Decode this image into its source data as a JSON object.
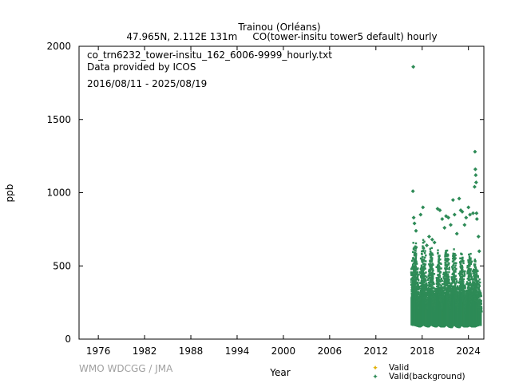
{
  "header": {
    "station": "Trainou (Orléans)",
    "subtitle": "47.965N, 2.112E 131m     CO(tower-insitu tower5 default) hourly"
  },
  "info": {
    "filename": "co_trn6232_tower-insitu_162_6006-9999_hourly.txt",
    "provider": "Data provided by ICOS",
    "period": "2016/08/11 - 2025/08/19"
  },
  "watermark": "WMO WDCGG / JMA",
  "legend": {
    "valid": "Valid",
    "valid_background": "Valid(background)"
  },
  "colors": {
    "valid": "#e0b000",
    "background": "#2e8b57",
    "axis": "#000000",
    "watermark": "#a0a0a0"
  },
  "chart_data": {
    "type": "scatter",
    "xlabel": "Year",
    "ylabel": "ppb",
    "xlim": [
      1973.5,
      2026.0
    ],
    "ylim": [
      0,
      2000
    ],
    "x_ticks": [
      1976,
      1982,
      1988,
      1994,
      2000,
      2006,
      2012,
      2018,
      2024
    ],
    "y_ticks": [
      0,
      500,
      1000,
      1500,
      2000
    ],
    "grid": false,
    "legend_position": "bottom-right",
    "series": [
      {
        "name": "Valid(background)",
        "style": "points",
        "envelope": [
          {
            "x": 2016.65,
            "min": 95,
            "max": 520
          },
          {
            "x": 2016.9,
            "min": 90,
            "max": 640
          },
          {
            "x": 2017.1,
            "min": 90,
            "max": 700
          },
          {
            "x": 2017.4,
            "min": 85,
            "max": 480
          },
          {
            "x": 2017.7,
            "min": 80,
            "max": 300
          },
          {
            "x": 2018.0,
            "min": 90,
            "max": 620
          },
          {
            "x": 2018.2,
            "min": 95,
            "max": 700
          },
          {
            "x": 2018.5,
            "min": 85,
            "max": 430
          },
          {
            "x": 2018.8,
            "min": 80,
            "max": 320
          },
          {
            "x": 2019.0,
            "min": 90,
            "max": 560
          },
          {
            "x": 2019.2,
            "min": 95,
            "max": 640
          },
          {
            "x": 2019.5,
            "min": 85,
            "max": 420
          },
          {
            "x": 2019.8,
            "min": 80,
            "max": 300
          },
          {
            "x": 2020.0,
            "min": 90,
            "max": 560
          },
          {
            "x": 2020.2,
            "min": 90,
            "max": 620
          },
          {
            "x": 2020.5,
            "min": 80,
            "max": 420
          },
          {
            "x": 2020.8,
            "min": 80,
            "max": 300
          },
          {
            "x": 2021.0,
            "min": 90,
            "max": 560
          },
          {
            "x": 2021.2,
            "min": 95,
            "max": 640
          },
          {
            "x": 2021.5,
            "min": 80,
            "max": 430
          },
          {
            "x": 2021.8,
            "min": 75,
            "max": 300
          },
          {
            "x": 2022.0,
            "min": 90,
            "max": 560
          },
          {
            "x": 2022.2,
            "min": 95,
            "max": 640
          },
          {
            "x": 2022.5,
            "min": 80,
            "max": 420
          },
          {
            "x": 2022.8,
            "min": 75,
            "max": 300
          },
          {
            "x": 2023.0,
            "min": 90,
            "max": 560
          },
          {
            "x": 2023.2,
            "min": 90,
            "max": 600
          },
          {
            "x": 2023.5,
            "min": 80,
            "max": 420
          },
          {
            "x": 2023.8,
            "min": 80,
            "max": 300
          },
          {
            "x": 2024.0,
            "min": 85,
            "max": 520
          },
          {
            "x": 2024.2,
            "min": 90,
            "max": 600
          },
          {
            "x": 2024.5,
            "min": 80,
            "max": 420
          },
          {
            "x": 2024.8,
            "min": 80,
            "max": 560
          },
          {
            "x": 2025.0,
            "min": 85,
            "max": 500
          },
          {
            "x": 2025.3,
            "min": 90,
            "max": 420
          },
          {
            "x": 2025.6,
            "min": 90,
            "max": 300
          }
        ],
        "points": [
          [
            2016.85,
            1860
          ],
          [
            2016.8,
            1010
          ],
          [
            2016.9,
            830
          ],
          [
            2017.0,
            790
          ],
          [
            2017.2,
            740
          ],
          [
            2018.1,
            900
          ],
          [
            2017.8,
            850
          ],
          [
            2018.6,
            640
          ],
          [
            2018.9,
            700
          ],
          [
            2019.3,
            680
          ],
          [
            2019.6,
            660
          ],
          [
            2020.0,
            890
          ],
          [
            2020.3,
            880
          ],
          [
            2020.6,
            820
          ],
          [
            2020.9,
            760
          ],
          [
            2021.1,
            840
          ],
          [
            2021.4,
            830
          ],
          [
            2021.7,
            780
          ],
          [
            2022.0,
            950
          ],
          [
            2022.2,
            850
          ],
          [
            2022.5,
            720
          ],
          [
            2022.8,
            960
          ],
          [
            2023.0,
            880
          ],
          [
            2023.2,
            870
          ],
          [
            2023.5,
            780
          ],
          [
            2023.7,
            830
          ],
          [
            2024.0,
            900
          ],
          [
            2024.2,
            850
          ],
          [
            2024.6,
            860
          ],
          [
            2024.8,
            1040
          ],
          [
            2024.85,
            1280
          ],
          [
            2024.9,
            1160
          ],
          [
            2024.95,
            1120
          ],
          [
            2025.0,
            1070
          ],
          [
            2025.05,
            860
          ],
          [
            2025.1,
            820
          ],
          [
            2025.3,
            700
          ],
          [
            2025.4,
            600
          ]
        ]
      },
      {
        "name": "Valid",
        "style": "points",
        "points": []
      }
    ]
  }
}
